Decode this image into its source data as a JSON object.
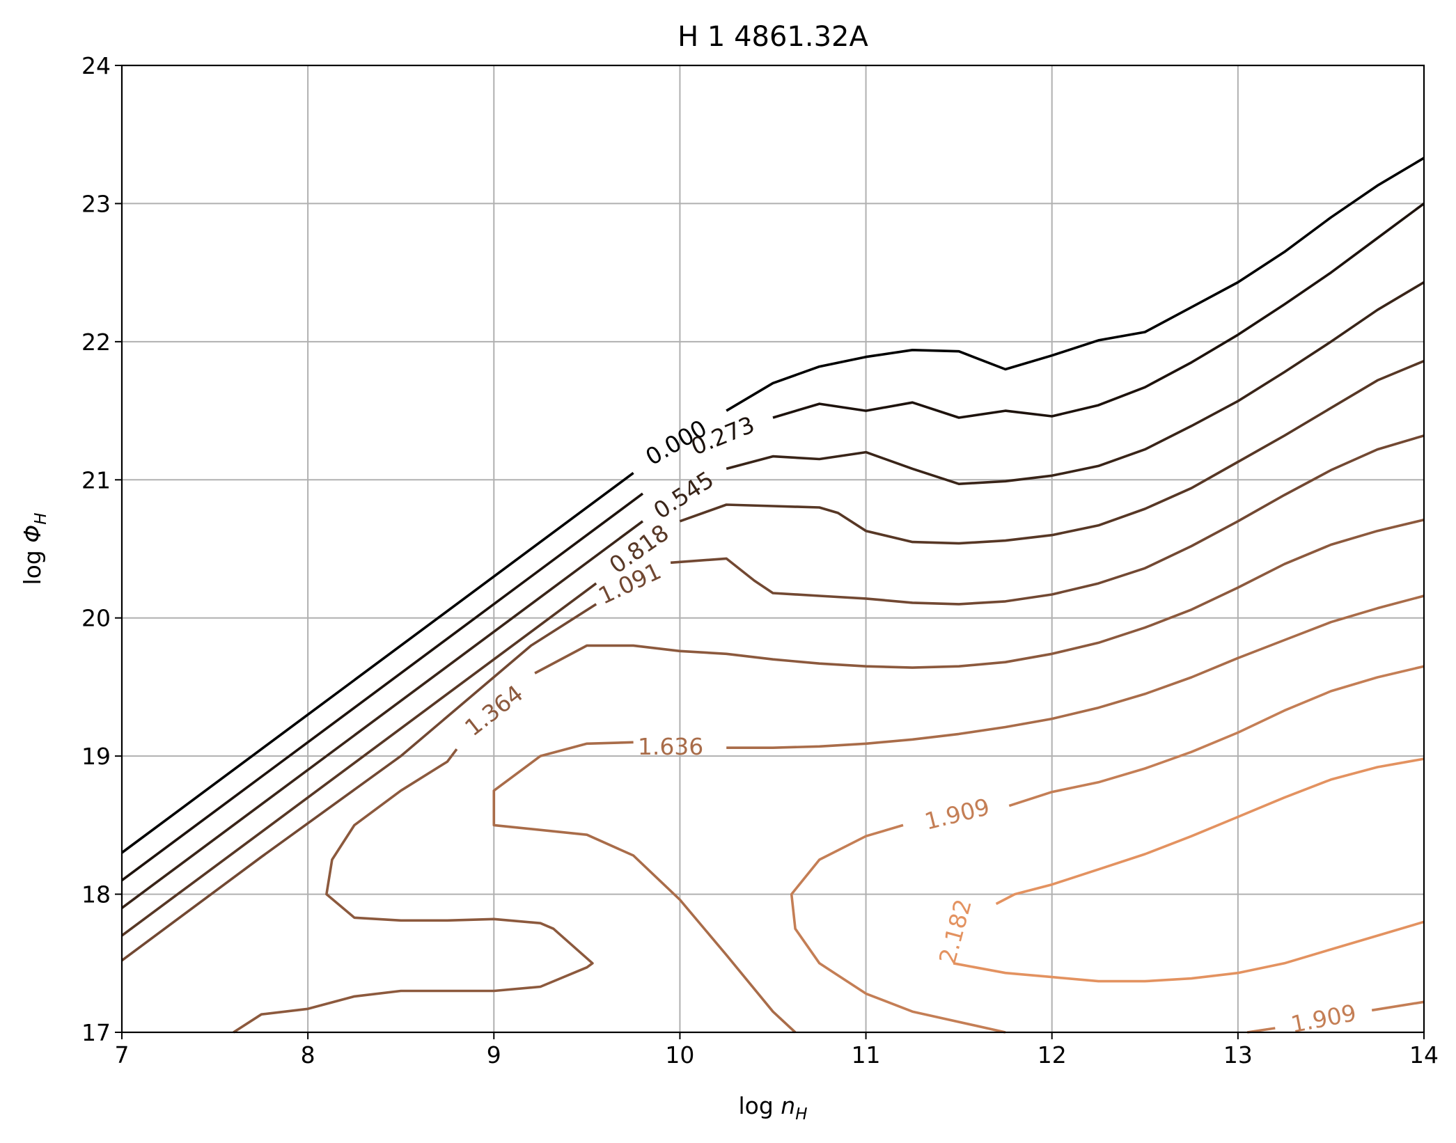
{
  "chart_data": {
    "type": "contour",
    "title": "H  1 4861.32A",
    "xlabel": {
      "prefix": "log ",
      "var": "n",
      "sub": "H"
    },
    "ylabel": {
      "prefix": "log ",
      "var": "Φ",
      "sub": "H"
    },
    "xlim": [
      7,
      14
    ],
    "ylim": [
      17,
      24
    ],
    "xticks": [
      7,
      8,
      9,
      10,
      11,
      12,
      13,
      14
    ],
    "yticks": [
      17,
      18,
      19,
      20,
      21,
      22,
      23,
      24
    ],
    "grid": true,
    "contours": [
      {
        "level": "0.000",
        "color": "#000000",
        "segments": [
          [
            [
              7.0,
              18.3
            ],
            [
              9.75,
              21.05
            ]
          ],
          [
            [
              10.25,
              21.5
            ],
            [
              10.5,
              21.7
            ],
            [
              10.75,
              21.82
            ],
            [
              11.0,
              21.89
            ],
            [
              11.25,
              21.94
            ],
            [
              11.5,
              21.93
            ],
            [
              11.75,
              21.8
            ],
            [
              12.0,
              21.9
            ],
            [
              12.25,
              22.01
            ],
            [
              12.5,
              22.07
            ],
            [
              12.75,
              22.25
            ],
            [
              13.0,
              22.43
            ],
            [
              13.25,
              22.65
            ],
            [
              13.5,
              22.9
            ],
            [
              13.75,
              23.13
            ],
            [
              14.0,
              23.33
            ]
          ]
        ],
        "labels": [
          {
            "text": "0.000",
            "x": 9.98,
            "y": 21.27,
            "angle": -30
          }
        ]
      },
      {
        "level": "0.273",
        "color": "#1d120c",
        "segments": [
          [
            [
              7.0,
              18.1
            ],
            [
              9.8,
              20.9
            ]
          ],
          [
            [
              10.5,
              21.45
            ],
            [
              10.75,
              21.55
            ],
            [
              11.0,
              21.5
            ],
            [
              11.25,
              21.56
            ],
            [
              11.5,
              21.45
            ],
            [
              11.75,
              21.5
            ],
            [
              12.0,
              21.46
            ],
            [
              12.25,
              21.54
            ],
            [
              12.5,
              21.67
            ],
            [
              12.75,
              21.85
            ],
            [
              13.0,
              22.05
            ],
            [
              13.25,
              22.27
            ],
            [
              13.5,
              22.5
            ],
            [
              13.75,
              22.75
            ],
            [
              14.0,
              23.0
            ]
          ]
        ],
        "labels": [
          {
            "text": "0.273",
            "x": 10.23,
            "y": 21.32,
            "angle": -22
          }
        ]
      },
      {
        "level": "0.545",
        "color": "#392418",
        "segments": [
          [
            [
              7.0,
              17.9
            ],
            [
              9.8,
              20.7
            ]
          ],
          [
            [
              10.25,
              21.08
            ],
            [
              10.5,
              21.17
            ],
            [
              10.75,
              21.15
            ],
            [
              11.0,
              21.2
            ],
            [
              11.25,
              21.08
            ],
            [
              11.5,
              20.97
            ],
            [
              11.75,
              20.99
            ],
            [
              12.0,
              21.03
            ],
            [
              12.25,
              21.1
            ],
            [
              12.5,
              21.22
            ],
            [
              12.75,
              21.39
            ],
            [
              13.0,
              21.57
            ],
            [
              13.25,
              21.78
            ],
            [
              13.5,
              22.0
            ],
            [
              13.75,
              22.23
            ],
            [
              14.0,
              22.43
            ]
          ]
        ],
        "labels": [
          {
            "text": "0.545",
            "x": 10.02,
            "y": 20.89,
            "angle": -33
          }
        ]
      },
      {
        "level": "0.818",
        "color": "#573725",
        "segments": [
          [
            [
              7.0,
              17.7
            ],
            [
              9.55,
              20.25
            ]
          ],
          [
            [
              10.0,
              20.7
            ],
            [
              10.25,
              20.82
            ],
            [
              10.5,
              20.81
            ],
            [
              10.75,
              20.8
            ],
            [
              10.85,
              20.76
            ],
            [
              11.0,
              20.63
            ],
            [
              11.25,
              20.55
            ],
            [
              11.5,
              20.54
            ],
            [
              11.75,
              20.56
            ],
            [
              12.0,
              20.6
            ],
            [
              12.25,
              20.67
            ],
            [
              12.5,
              20.79
            ],
            [
              12.75,
              20.94
            ],
            [
              13.0,
              21.13
            ],
            [
              13.25,
              21.32
            ],
            [
              13.5,
              21.52
            ],
            [
              13.75,
              21.72
            ],
            [
              14.0,
              21.86
            ]
          ]
        ],
        "labels": [
          {
            "text": "0.818",
            "x": 9.78,
            "y": 20.5,
            "angle": -35
          }
        ]
      },
      {
        "level": "1.091",
        "color": "#724832",
        "segments": [
          [
            [
              7.0,
              17.52
            ],
            [
              7.75,
              18.27
            ],
            [
              8.5,
              19.0
            ],
            [
              9.2,
              19.8
            ],
            [
              9.55,
              20.1
            ]
          ],
          [
            [
              9.95,
              20.4
            ],
            [
              10.25,
              20.43
            ],
            [
              10.4,
              20.27
            ],
            [
              10.5,
              20.18
            ],
            [
              10.75,
              20.16
            ],
            [
              11.0,
              20.14
            ],
            [
              11.25,
              20.11
            ],
            [
              11.5,
              20.1
            ],
            [
              11.75,
              20.12
            ],
            [
              12.0,
              20.17
            ],
            [
              12.25,
              20.25
            ],
            [
              12.5,
              20.36
            ],
            [
              12.75,
              20.52
            ],
            [
              13.0,
              20.7
            ],
            [
              13.25,
              20.89
            ],
            [
              13.5,
              21.07
            ],
            [
              13.75,
              21.22
            ],
            [
              14.0,
              21.32
            ]
          ]
        ],
        "labels": [
          {
            "text": "1.091",
            "x": 9.73,
            "y": 20.25,
            "angle": -25
          }
        ]
      },
      {
        "level": "1.364",
        "color": "#8c593d",
        "segments": [
          [
            [
              7.6,
              17.0
            ],
            [
              7.75,
              17.13
            ],
            [
              8.0,
              17.17
            ],
            [
              8.25,
              17.26
            ],
            [
              8.5,
              17.3
            ],
            [
              9.0,
              17.3
            ],
            [
              9.25,
              17.33
            ],
            [
              9.5,
              17.47
            ],
            [
              9.53,
              17.5
            ],
            [
              9.32,
              17.75
            ],
            [
              9.25,
              17.79
            ],
            [
              9.0,
              17.82
            ],
            [
              8.75,
              17.81
            ],
            [
              8.5,
              17.81
            ],
            [
              8.25,
              17.83
            ],
            [
              8.1,
              18.0
            ],
            [
              8.13,
              18.25
            ],
            [
              8.25,
              18.5
            ],
            [
              8.5,
              18.75
            ],
            [
              8.75,
              18.96
            ],
            [
              8.8,
              19.05
            ]
          ],
          [
            [
              9.22,
              19.6
            ],
            [
              9.5,
              19.8
            ],
            [
              9.75,
              19.8
            ],
            [
              10.0,
              19.76
            ],
            [
              10.25,
              19.74
            ],
            [
              10.5,
              19.7
            ],
            [
              10.75,
              19.67
            ],
            [
              11.0,
              19.65
            ],
            [
              11.25,
              19.64
            ],
            [
              11.5,
              19.65
            ],
            [
              11.75,
              19.68
            ],
            [
              12.0,
              19.74
            ],
            [
              12.25,
              19.82
            ],
            [
              12.5,
              19.93
            ],
            [
              12.75,
              20.06
            ],
            [
              13.0,
              20.22
            ],
            [
              13.25,
              20.39
            ],
            [
              13.5,
              20.53
            ],
            [
              13.75,
              20.63
            ],
            [
              14.0,
              20.71
            ]
          ]
        ],
        "labels": [
          {
            "text": "1.364",
            "x": 9.0,
            "y": 19.33,
            "angle": -38
          }
        ]
      },
      {
        "level": "1.636",
        "color": "#a96c49",
        "segments": [
          [
            [
              10.62,
              17.0
            ],
            [
              10.5,
              17.15
            ],
            [
              10.25,
              17.56
            ],
            [
              10.0,
              17.96
            ],
            [
              9.75,
              18.28
            ],
            [
              9.5,
              18.43
            ],
            [
              9.0,
              18.5
            ],
            [
              9.0,
              18.75
            ],
            [
              9.25,
              19.0
            ],
            [
              9.5,
              19.09
            ],
            [
              9.75,
              19.1
            ]
          ],
          [
            [
              10.25,
              19.06
            ],
            [
              10.5,
              19.06
            ],
            [
              10.75,
              19.07
            ],
            [
              11.0,
              19.09
            ],
            [
              11.25,
              19.12
            ],
            [
              11.5,
              19.16
            ],
            [
              11.75,
              19.21
            ],
            [
              12.0,
              19.27
            ],
            [
              12.25,
              19.35
            ],
            [
              12.5,
              19.45
            ],
            [
              12.75,
              19.57
            ],
            [
              13.0,
              19.71
            ],
            [
              13.25,
              19.84
            ],
            [
              13.5,
              19.97
            ],
            [
              13.75,
              20.07
            ],
            [
              14.0,
              20.16
            ]
          ]
        ],
        "labels": [
          {
            "text": "1.636",
            "x": 9.95,
            "y": 19.07,
            "angle": 0
          }
        ]
      },
      {
        "level": "1.909",
        "color": "#c47e55",
        "segments": [
          [
            [
              11.75,
              17.0
            ],
            [
              11.25,
              17.15
            ],
            [
              11.0,
              17.28
            ],
            [
              10.75,
              17.5
            ],
            [
              10.62,
              17.75
            ],
            [
              10.6,
              18.0
            ],
            [
              10.75,
              18.25
            ],
            [
              11.0,
              18.42
            ],
            [
              11.2,
              18.5
            ]
          ],
          [
            [
              11.77,
              18.64
            ],
            [
              12.0,
              18.74
            ],
            [
              12.25,
              18.81
            ],
            [
              12.5,
              18.91
            ],
            [
              12.75,
              19.03
            ],
            [
              13.0,
              19.17
            ],
            [
              13.25,
              19.33
            ],
            [
              13.5,
              19.47
            ],
            [
              13.75,
              19.57
            ],
            [
              14.0,
              19.65
            ]
          ],
          [
            [
              13.05,
              17.0
            ],
            [
              13.2,
              17.03
            ]
          ],
          [
            [
              13.72,
              17.16
            ],
            [
              14.0,
              17.22
            ]
          ]
        ],
        "labels": [
          {
            "text": "1.909",
            "x": 11.49,
            "y": 18.58,
            "angle": -14
          },
          {
            "text": "1.909",
            "x": 13.46,
            "y": 17.1,
            "angle": -11
          }
        ]
      },
      {
        "level": "2.182",
        "color": "#e39260",
        "segments": [
          [
            [
              11.47,
              17.5
            ],
            [
              11.75,
              17.43
            ],
            [
              12.0,
              17.4
            ],
            [
              12.25,
              17.37
            ],
            [
              12.5,
              17.37
            ],
            [
              12.75,
              17.39
            ],
            [
              13.0,
              17.43
            ],
            [
              13.25,
              17.5
            ],
            [
              13.5,
              17.6
            ],
            [
              13.75,
              17.7
            ],
            [
              14.0,
              17.8
            ]
          ],
          [
            [
              11.7,
              17.93
            ],
            [
              11.8,
              18.0
            ],
            [
              12.0,
              18.07
            ],
            [
              12.25,
              18.18
            ],
            [
              12.5,
              18.29
            ],
            [
              12.75,
              18.42
            ],
            [
              13.0,
              18.56
            ],
            [
              13.25,
              18.7
            ],
            [
              13.5,
              18.83
            ],
            [
              13.75,
              18.92
            ],
            [
              14.0,
              18.98
            ]
          ]
        ],
        "labels": [
          {
            "text": "2.182",
            "x": 11.48,
            "y": 17.73,
            "angle": -75
          }
        ]
      }
    ]
  }
}
